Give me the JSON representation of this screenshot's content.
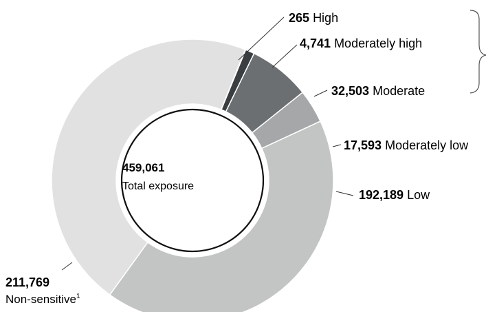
{
  "chart_data": {
    "type": "pie",
    "variant": "donut",
    "total": {
      "value": "459,061",
      "label": "Total exposure"
    },
    "slices": [
      {
        "value": 265,
        "value_label": "265",
        "name": "High",
        "color": "#e3001b"
      },
      {
        "value": 4741,
        "value_label": "4,741",
        "name": "Moderately high",
        "color": "#3b3e40"
      },
      {
        "value": 32503,
        "value_label": "32,503",
        "name": "Moderate",
        "color": "#6c6f71"
      },
      {
        "value": 17593,
        "value_label": "17,593",
        "name": "Moderately low",
        "color": "#a5a7a8"
      },
      {
        "value": 192189,
        "value_label": "192,189",
        "name": "Low",
        "color": "#c3c4c4"
      },
      {
        "value": 211769,
        "value_label": "211,769",
        "name": "Non-sensitive",
        "footnote": "1",
        "color": "#e1e1e1"
      }
    ]
  }
}
